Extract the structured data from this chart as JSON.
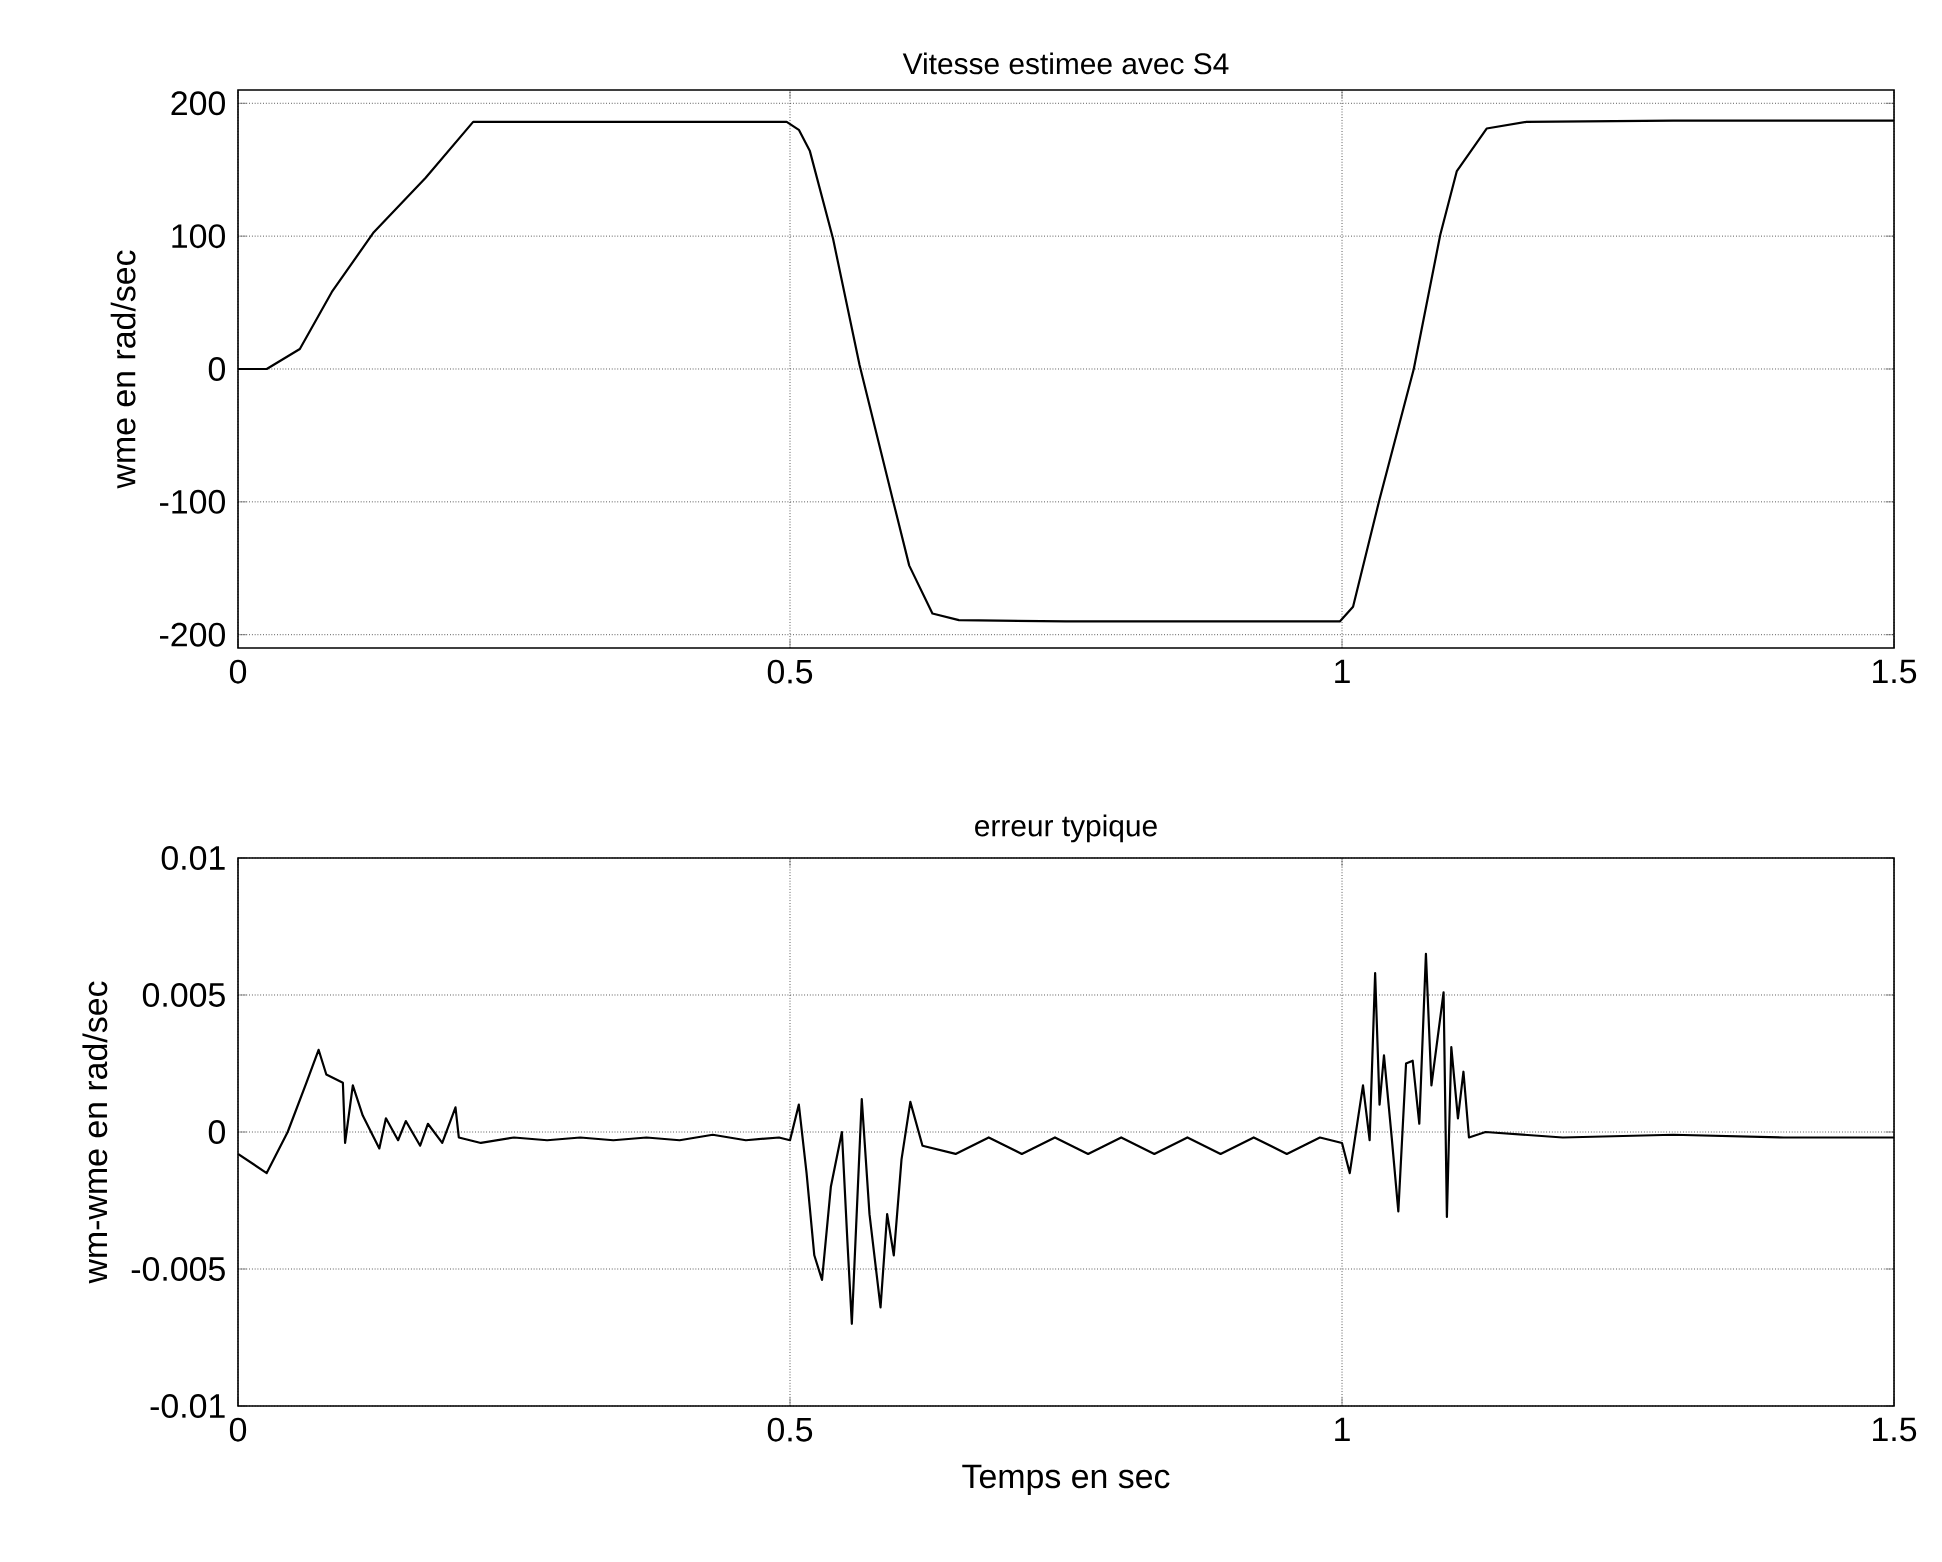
{
  "chart_data": [
    {
      "type": "line",
      "title": "Vitesse estimee avec S4",
      "ylabel": "wme en rad/sec",
      "xlim": [
        0,
        1.5
      ],
      "ylim": [
        -210,
        210
      ],
      "xticks": [
        0,
        0.5,
        1,
        1.5
      ],
      "yticks": [
        -200,
        -100,
        0,
        100,
        200
      ],
      "grid": true,
      "color": "#000000",
      "x": [
        0,
        0.026,
        0.056,
        0.085,
        0.123,
        0.17,
        0.213,
        0.3,
        0.4,
        0.497,
        0.508,
        0.518,
        0.539,
        0.563,
        0.593,
        0.608,
        0.629,
        0.653,
        0.75,
        0.85,
        0.95,
        0.998,
        1.01,
        1.034,
        1.065,
        1.089,
        1.104,
        1.131,
        1.167,
        1.3,
        1.5
      ],
      "values": [
        0,
        0,
        15,
        58,
        103,
        144,
        186,
        186,
        186,
        186,
        180,
        164,
        98,
        3,
        -98,
        -148,
        -184,
        -189,
        -190,
        -190,
        -190,
        -190,
        -179,
        -98,
        0,
        101,
        149,
        181,
        186,
        187,
        187
      ]
    },
    {
      "type": "line",
      "title": "erreur typique",
      "xlabel": "Temps en sec",
      "ylabel": "wm-wme en rad/sec",
      "xlim": [
        0,
        1.5
      ],
      "ylim": [
        -0.01,
        0.01
      ],
      "xticks": [
        0,
        0.5,
        1,
        1.5
      ],
      "yticks": [
        -0.01,
        -0.005,
        0,
        0.005,
        0.01
      ],
      "grid": true,
      "color": "#000000",
      "x": [
        0,
        0.026,
        0.045,
        0.062,
        0.073,
        0.08,
        0.095,
        0.097,
        0.104,
        0.113,
        0.128,
        0.134,
        0.145,
        0.152,
        0.165,
        0.172,
        0.185,
        0.197,
        0.2,
        0.22,
        0.25,
        0.28,
        0.31,
        0.34,
        0.37,
        0.4,
        0.43,
        0.46,
        0.49,
        0.5,
        0.508,
        0.515,
        0.522,
        0.529,
        0.537,
        0.547,
        0.552,
        0.556,
        0.565,
        0.572,
        0.582,
        0.588,
        0.594,
        0.601,
        0.609,
        0.62,
        0.65,
        0.68,
        0.71,
        0.74,
        0.77,
        0.8,
        0.83,
        0.86,
        0.89,
        0.92,
        0.95,
        0.98,
        1.0,
        1.007,
        1.019,
        1.025,
        1.03,
        1.034,
        1.038,
        1.045,
        1.051,
        1.058,
        1.064,
        1.07,
        1.076,
        1.081,
        1.092,
        1.095,
        1.099,
        1.105,
        1.11,
        1.115,
        1.13,
        1.2,
        1.3,
        1.4,
        1.5
      ],
      "values": [
        -0.0008,
        -0.0015,
        0,
        0.0018,
        0.003,
        0.0021,
        0.0018,
        -0.0004,
        0.0017,
        0.0006,
        -0.0006,
        0.0005,
        -0.0003,
        0.0004,
        -0.0005,
        0.0003,
        -0.0004,
        0.0009,
        -0.0002,
        -0.0004,
        -0.0002,
        -0.0003,
        -0.0002,
        -0.0003,
        -0.0002,
        -0.0003,
        -0.0001,
        -0.0003,
        -0.0002,
        -0.0003,
        0.001,
        -0.0015,
        -0.0045,
        -0.0054,
        -0.002,
        0,
        -0.004,
        -0.007,
        0.0012,
        -0.003,
        -0.0064,
        -0.003,
        -0.0045,
        -0.001,
        0.0011,
        -0.0005,
        -0.0008,
        -0.0002,
        -0.0008,
        -0.0002,
        -0.0008,
        -0.0002,
        -0.0008,
        -0.0002,
        -0.0008,
        -0.0002,
        -0.0008,
        -0.0002,
        -0.0004,
        -0.0015,
        0.0017,
        -0.0003,
        0.0058,
        0.001,
        0.0028,
        -0.0002,
        -0.0029,
        0.0025,
        0.0026,
        0.0003,
        0.0065,
        0.0017,
        0.0051,
        -0.0031,
        0.0031,
        0.0005,
        0.0022,
        -0.0002,
        0,
        -0.0002,
        -0.0001,
        -0.0002,
        -0.0002
      ]
    }
  ]
}
